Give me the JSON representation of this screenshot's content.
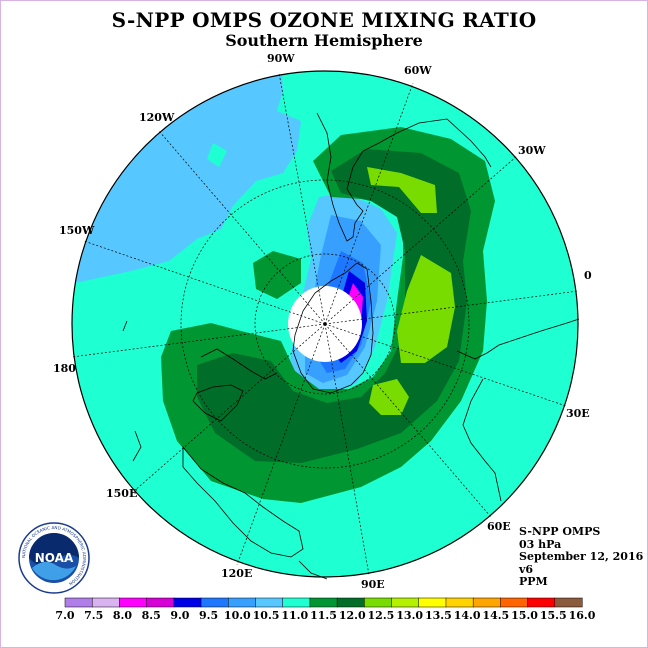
{
  "title": "S-NPP OMPS OZONE MIXING RATIO",
  "subtitle": "Southern Hemisphere",
  "longitude_labels": [
    "90W",
    "60W",
    "30W",
    "0",
    "30E",
    "60E",
    "90E",
    "120E",
    "150E",
    "180",
    "150W",
    "120W"
  ],
  "info": {
    "instrument": "S-NPP OMPS",
    "level": "03 hPa",
    "date": "September 12, 2016",
    "version": "v6",
    "units": "PPM"
  },
  "logo": {
    "text": "NOAA",
    "ring_text": "NATIONAL OCEANIC AND ATMOSPHERIC ADMINISTRATION"
  },
  "colorbar": {
    "ticks": [
      "7.0",
      "7.5",
      "8.0",
      "8.5",
      "9.0",
      "9.5",
      "10.0",
      "10.5",
      "11.0",
      "11.5",
      "12.0",
      "12.5",
      "13.0",
      "13.5",
      "14.0",
      "14.5",
      "15.0",
      "15.5",
      "16.0"
    ],
    "colors": [
      "#b07ee8",
      "#d9b3f0",
      "#ff00ff",
      "#d600d6",
      "#0000e6",
      "#1e78ff",
      "#37a0ff",
      "#56c8ff",
      "#1effd2",
      "#009632",
      "#006e28",
      "#78dc00",
      "#b4f000",
      "#ffff00",
      "#ffd200",
      "#ffa500",
      "#ff6400",
      "#ff0000",
      "#8c5a3c"
    ]
  }
}
